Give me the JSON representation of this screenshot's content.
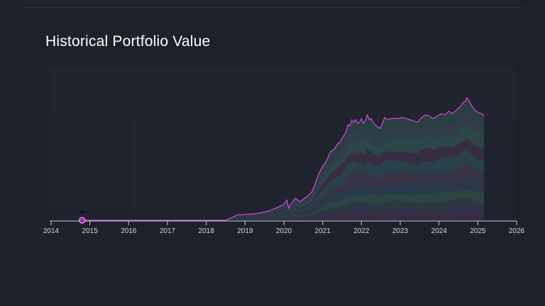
{
  "chart_data": {
    "type": "area",
    "title": "Historical Portfolio Value",
    "xlabel": "",
    "ylabel": "",
    "x_ticks": [
      "2014",
      "2015",
      "2016",
      "2017",
      "2018",
      "2019",
      "2020",
      "2021",
      "2022",
      "2023",
      "2024",
      "2025",
      "2026"
    ],
    "xlim": [
      2014,
      2026
    ],
    "ylim": [
      0,
      1
    ],
    "y_axis_labels_shown": false,
    "grid": false,
    "legend": "none",
    "total_series_color": "#d946ef",
    "range_marker_x": 2014.8,
    "total": {
      "x": [
        2014.8,
        2015.5,
        2016.5,
        2017.5,
        2018.5,
        2018.72,
        2018.8,
        2019.0,
        2019.3,
        2019.6,
        2019.8,
        2020.0,
        2020.08,
        2020.12,
        2020.2,
        2020.3,
        2020.42,
        2020.5,
        2020.62,
        2020.72,
        2020.8,
        2020.9,
        2020.98,
        2021.05,
        2021.12,
        2021.2,
        2021.3,
        2021.38,
        2021.45,
        2021.52,
        2021.6,
        2021.65,
        2021.7,
        2021.75,
        2021.8,
        2021.85,
        2021.9,
        2021.95,
        2022.0,
        2022.05,
        2022.1,
        2022.15,
        2022.2,
        2022.25,
        2022.3,
        2022.35,
        2022.42,
        2022.48,
        2022.55,
        2022.6,
        2022.68,
        2022.75,
        2022.85,
        2022.95,
        2023.05,
        2023.15,
        2023.25,
        2023.35,
        2023.45,
        2023.55,
        2023.65,
        2023.75,
        2023.85,
        2023.95,
        2024.05,
        2024.15,
        2024.25,
        2024.35,
        2024.45,
        2024.55,
        2024.62,
        2024.68,
        2024.72,
        2024.78,
        2024.85,
        2024.92,
        2025.0,
        2025.1,
        2025.16
      ],
      "y": [
        0,
        0,
        0,
        0,
        0,
        0.03,
        0.045,
        0.048,
        0.055,
        0.075,
        0.1,
        0.13,
        0.165,
        0.1,
        0.14,
        0.18,
        0.15,
        0.17,
        0.2,
        0.23,
        0.29,
        0.38,
        0.43,
        0.46,
        0.5,
        0.56,
        0.58,
        0.62,
        0.64,
        0.68,
        0.72,
        0.78,
        0.77,
        0.82,
        0.8,
        0.82,
        0.79,
        0.8,
        0.83,
        0.79,
        0.81,
        0.86,
        0.82,
        0.83,
        0.8,
        0.78,
        0.76,
        0.75,
        0.8,
        0.84,
        0.82,
        0.83,
        0.83,
        0.83,
        0.84,
        0.83,
        0.82,
        0.81,
        0.8,
        0.84,
        0.86,
        0.85,
        0.83,
        0.85,
        0.87,
        0.86,
        0.89,
        0.87,
        0.9,
        0.93,
        0.96,
        0.97,
        1.0,
        0.97,
        0.93,
        0.9,
        0.88,
        0.87,
        0.85
      ]
    },
    "components": [
      {
        "color": "#3d2a44",
        "share": 0.04
      },
      {
        "color": "#35324a",
        "share": 0.06
      },
      {
        "color": "#2f3a44",
        "share": 0.08
      },
      {
        "color": "#2d4846",
        "share": 0.08
      },
      {
        "color": "#2c3b4c",
        "share": 0.1
      },
      {
        "color": "#3b3548",
        "share": 0.1
      },
      {
        "color": "#2b4550",
        "share": 0.12
      },
      {
        "color": "#3a2f42",
        "share": 0.1
      },
      {
        "color": "#2e4a4a",
        "share": 0.12
      },
      {
        "color": "#33404c",
        "share": 0.1
      },
      {
        "color": "#2a4242",
        "share": 0.1
      }
    ]
  }
}
